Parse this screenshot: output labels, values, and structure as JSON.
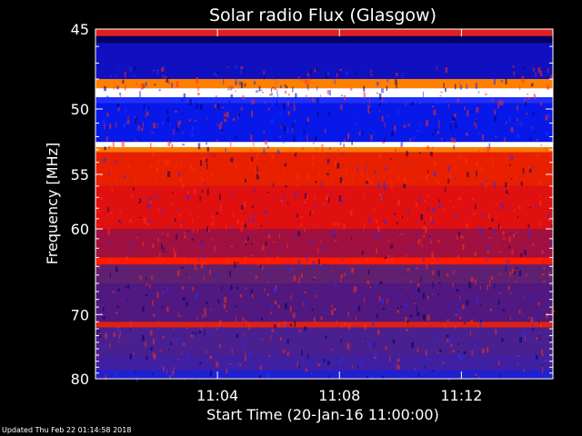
{
  "chart_data": {
    "type": "heatmap",
    "title": "Solar radio Flux (Glasgow)",
    "ylabel": "Frequency [MHz]",
    "xlabel": "Start Time (20-Jan-16 11:00:00)",
    "y_scale": "reciprocal",
    "y_range_mhz": [
      45,
      80
    ],
    "y_ticks": [
      45,
      50,
      55,
      60,
      70,
      80
    ],
    "y_tick_labels": [
      "45",
      "50",
      "55",
      "60",
      "70",
      "80"
    ],
    "x_range": [
      "11:00:00",
      "11:15:00"
    ],
    "x_ticks": [
      "11:04",
      "11:08",
      "11:12"
    ],
    "colormap": "blue-red-white",
    "bands": [
      {
        "from_mhz": 45.0,
        "to_mhz": 45.4,
        "color": "#e02020"
      },
      {
        "from_mhz": 45.4,
        "to_mhz": 45.8,
        "color": "#000060"
      },
      {
        "from_mhz": 45.8,
        "to_mhz": 48.0,
        "color": "#1010c0"
      },
      {
        "from_mhz": 48.0,
        "to_mhz": 48.6,
        "color": "#ff8000"
      },
      {
        "from_mhz": 48.6,
        "to_mhz": 49.2,
        "color": "#ffffff"
      },
      {
        "from_mhz": 49.2,
        "to_mhz": 49.6,
        "color": "#2030ff"
      },
      {
        "from_mhz": 49.6,
        "to_mhz": 52.4,
        "color": "#0818e8"
      },
      {
        "from_mhz": 52.4,
        "to_mhz": 52.8,
        "color": "#ffffff"
      },
      {
        "from_mhz": 52.8,
        "to_mhz": 53.2,
        "color": "#ff7a00"
      },
      {
        "from_mhz": 53.2,
        "to_mhz": 56.0,
        "color": "#e82000"
      },
      {
        "from_mhz": 56.0,
        "to_mhz": 60.0,
        "color": "#e01010"
      },
      {
        "from_mhz": 60.0,
        "to_mhz": 63.0,
        "color": "#a01040"
      },
      {
        "from_mhz": 63.0,
        "to_mhz": 63.8,
        "color": "#ff1a00"
      },
      {
        "from_mhz": 63.8,
        "to_mhz": 66.0,
        "color": "#602070"
      },
      {
        "from_mhz": 66.0,
        "to_mhz": 71.0,
        "color": "#501880"
      },
      {
        "from_mhz": 71.0,
        "to_mhz": 71.8,
        "color": "#e02010"
      },
      {
        "from_mhz": 71.8,
        "to_mhz": 76.0,
        "color": "#4a2090"
      },
      {
        "from_mhz": 76.0,
        "to_mhz": 78.5,
        "color": "#4020a0"
      },
      {
        "from_mhz": 78.5,
        "to_mhz": 80.0,
        "color": "#2020d0"
      }
    ]
  },
  "footer": {
    "updated": "Updated Thu Feb 22 01:14:58 2018"
  }
}
